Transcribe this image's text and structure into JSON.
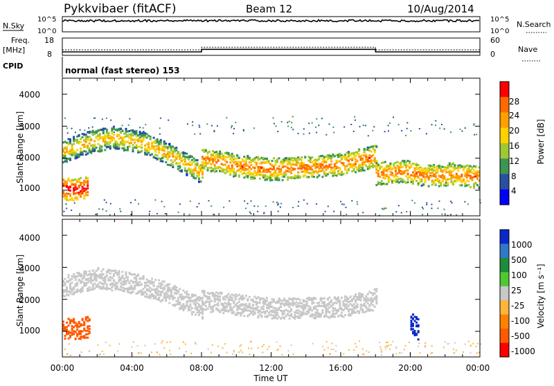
{
  "header": {
    "station": "Pykkvibaer (fitACF)",
    "beam": "Beam 12",
    "date": "10/Aug/2014"
  },
  "top_panels": {
    "nsky_label": "N.Sky",
    "nsky_ticks": [
      "10^5",
      "10^0"
    ],
    "nsearch_label": "N.Search",
    "nsearch_ticks": [
      "10^5",
      "10^0"
    ],
    "freq_label_1": "Freq.",
    "freq_label_2": "[MHz]",
    "freq_ticks": [
      "18",
      "8"
    ],
    "nave_label": "Nave",
    "nave_ticks": [
      "60",
      "0"
    ],
    "cpid_label": "CPID",
    "cpid_text": "normal (fast stereo) 153"
  },
  "power_panel": {
    "ylabel": "Slant Range [km]",
    "yticks": [
      "4000",
      "3000",
      "2000",
      "1000"
    ],
    "cbar_label": "Power [dB]",
    "cbar_ticks": [
      "28",
      "24",
      "20",
      "16",
      "12",
      "8",
      "4"
    ],
    "cbar_colors": [
      "#ff0000",
      "#ff6a00",
      "#ffa000",
      "#ffd200",
      "#a0c832",
      "#3c9650",
      "#2850a0",
      "#0000ff"
    ]
  },
  "velocity_panel": {
    "ylabel": "Slant Range [km]",
    "yticks": [
      "4000",
      "3000",
      "2000",
      "1000"
    ],
    "cbar_label": "Velocity [m s⁻¹]",
    "cbar_ticks": [
      "1000",
      "500",
      "100",
      "25",
      "-25",
      "-100",
      "-500",
      "-1000"
    ],
    "cbar_colors": [
      "#0a28c8",
      "#3278c8",
      "#1e8c3c",
      "#50c832",
      "#c8c8c8",
      "#ffb43c",
      "#ff8200",
      "#ff5a00",
      "#ff0000"
    ]
  },
  "x_axis": {
    "xlabel": "Time UT",
    "xticks": [
      "00:00",
      "04:00",
      "08:00",
      "12:00",
      "16:00",
      "20:00",
      "00:00"
    ]
  },
  "chart_data": [
    {
      "type": "line",
      "title": "N.Sky / N.Search",
      "x": [
        0,
        4,
        8,
        12,
        16,
        20,
        24
      ],
      "series": [
        {
          "name": "N.Sky",
          "values": [
            100000,
            100000,
            100000,
            100000,
            100000,
            100000,
            100000
          ]
        }
      ],
      "ylim": [
        1,
        100000
      ]
    },
    {
      "type": "line",
      "title": "Freq. / Nave",
      "x": [
        0,
        8,
        8,
        18,
        18,
        24
      ],
      "series": [
        {
          "name": "Freq.",
          "values": [
            10,
            10,
            11.5,
            11.5,
            10,
            10
          ]
        }
      ],
      "ylim": [
        8,
        18
      ]
    },
    {
      "type": "heatmap",
      "title": "Power [dB]",
      "xlabel": "Time UT",
      "ylabel": "Slant Range [km]",
      "xlim": [
        0,
        24
      ],
      "ylim": [
        200,
        4500
      ],
      "bands": [
        {
          "x": [
            0,
            1.5,
            3,
            5,
            6.5,
            8
          ],
          "y": [
            2200,
            2500,
            2650,
            2400,
            2000,
            1550
          ],
          "level": 18
        },
        {
          "x": [
            8,
            10,
            12,
            14,
            16,
            18
          ],
          "y": [
            2000,
            1750,
            1650,
            1700,
            1800,
            2050
          ],
          "level": 22
        },
        {
          "x": [
            18,
            19.5,
            21,
            22.5,
            24
          ],
          "y": [
            1500,
            1600,
            1450,
            1500,
            1400
          ],
          "level": 22
        },
        {
          "x": [
            0,
            0.7,
            1.5
          ],
          "y": [
            1050,
            1000,
            1100
          ],
          "level": 28
        }
      ]
    },
    {
      "type": "heatmap",
      "title": "Velocity [m s⁻¹]",
      "xlabel": "Time UT",
      "ylabel": "Slant Range [km]",
      "xlim": [
        0,
        24
      ],
      "ylim": [
        200,
        4500
      ],
      "bands": [
        {
          "x": [
            0,
            2,
            4,
            6,
            8
          ],
          "y": [
            2400,
            2650,
            2500,
            2200,
            1700
          ],
          "value": 0
        },
        {
          "x": [
            8,
            12,
            16,
            18
          ],
          "y": [
            1950,
            1700,
            1750,
            2000
          ],
          "value": 0
        },
        {
          "x": [
            0,
            0.8,
            1.6
          ],
          "y": [
            1100,
            1050,
            1150
          ],
          "value": -500
        },
        {
          "x": [
            20,
            20.5
          ],
          "y": [
            1300,
            1000
          ],
          "value": 1000
        }
      ]
    }
  ]
}
